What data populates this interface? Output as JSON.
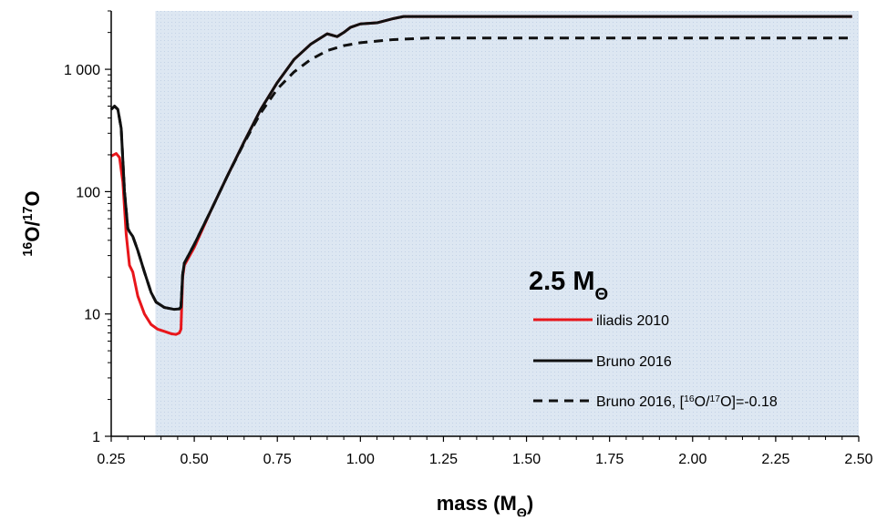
{
  "chart_data": {
    "type": "line",
    "xlabel": "mass (MΘ)",
    "ylabel": "16O/17O",
    "xscale": "linear",
    "yscale": "log",
    "xlim": [
      0.25,
      2.5
    ],
    "ylim": [
      1,
      3000
    ],
    "xticks": [
      "0.25",
      "0.50",
      "0.75",
      "1.00",
      "1.25",
      "1.50",
      "1.75",
      "2.00",
      "2.25",
      "2.50"
    ],
    "xtick_values": [
      0.25,
      0.5,
      0.75,
      1.0,
      1.25,
      1.5,
      1.75,
      2.0,
      2.25,
      2.5
    ],
    "yticks": [
      "1",
      "10",
      "100",
      "1 000"
    ],
    "ytick_values": [
      1,
      10,
      100,
      1000
    ],
    "grid": false,
    "legend_position": "bottom-right",
    "shaded_region": {
      "x": [
        0.383,
        2.5
      ],
      "color": "#dce6f1"
    },
    "annotation": "2.5 MΘ",
    "series": [
      {
        "name": "iliadis 2010",
        "color": "#e8161b",
        "dash": "solid",
        "x": [
          0.25,
          0.265,
          0.275,
          0.285,
          0.295,
          0.305,
          0.315,
          0.33,
          0.35,
          0.37,
          0.39,
          0.41,
          0.43,
          0.445,
          0.455,
          0.46,
          0.465,
          0.47,
          0.5,
          0.55,
          0.6,
          0.65,
          0.7,
          0.75,
          0.8,
          0.85,
          0.9,
          0.93,
          0.95,
          0.97,
          1.0,
          1.05,
          1.1,
          1.13,
          1.2,
          1.5,
          2.0,
          2.48
        ],
        "y": [
          195,
          205,
          190,
          120,
          45,
          25,
          22,
          14,
          10,
          8.2,
          7.5,
          7.2,
          6.9,
          6.8,
          7.0,
          7.5,
          20,
          25,
          35,
          70,
          135,
          255,
          470,
          780,
          1200,
          1600,
          1950,
          1850,
          2000,
          2200,
          2350,
          2400,
          2600,
          2700,
          2700,
          2700,
          2700,
          2700
        ]
      },
      {
        "name": "Bruno 2016",
        "color": "#111111",
        "dash": "solid",
        "x": [
          0.25,
          0.26,
          0.27,
          0.28,
          0.29,
          0.3,
          0.305,
          0.315,
          0.33,
          0.35,
          0.37,
          0.385,
          0.41,
          0.44,
          0.455,
          0.46,
          0.465,
          0.47,
          0.5,
          0.55,
          0.6,
          0.65,
          0.7,
          0.75,
          0.8,
          0.85,
          0.9,
          0.93,
          0.95,
          0.97,
          1.0,
          1.05,
          1.1,
          1.13,
          1.2,
          1.5,
          2.0,
          2.48
        ],
        "y": [
          470,
          500,
          470,
          330,
          100,
          50,
          47,
          43,
          33,
          22,
          15,
          12.5,
          11.3,
          10.9,
          11.0,
          11.4,
          21,
          26,
          37,
          70,
          135,
          255,
          470,
          780,
          1200,
          1600,
          1950,
          1850,
          2000,
          2200,
          2350,
          2400,
          2600,
          2700,
          2700,
          2700,
          2700,
          2700
        ]
      },
      {
        "name": "Bruno 2016,   [16O/17O]=-0.18",
        "color": "#111111",
        "dash": "dashed",
        "x": [
          0.25,
          0.26,
          0.27,
          0.28,
          0.29,
          0.3,
          0.305,
          0.315,
          0.33,
          0.35,
          0.37,
          0.385,
          0.41,
          0.44,
          0.455,
          0.46,
          0.465,
          0.47,
          0.5,
          0.55,
          0.6,
          0.65,
          0.7,
          0.75,
          0.8,
          0.85,
          0.9,
          0.95,
          1.0,
          1.05,
          1.1,
          1.2,
          1.5,
          2.0,
          2.48
        ],
        "y": [
          470,
          500,
          470,
          330,
          100,
          50,
          47,
          43,
          33,
          22,
          15,
          12.5,
          11.3,
          10.9,
          11.0,
          11.4,
          21,
          26,
          37,
          70,
          135,
          250,
          440,
          690,
          950,
          1200,
          1420,
          1560,
          1650,
          1700,
          1750,
          1800,
          1800,
          1800,
          1800
        ]
      }
    ]
  }
}
